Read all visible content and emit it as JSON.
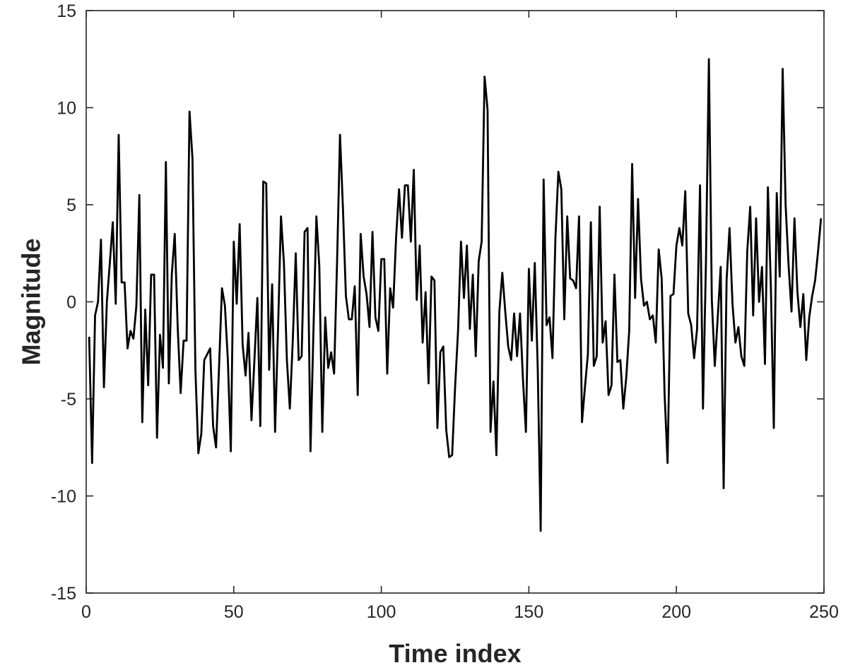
{
  "chart_data": {
    "type": "line",
    "title": "",
    "xlabel": "Time index",
    "ylabel": "Magnitude",
    "xlim": [
      0,
      250
    ],
    "ylim": [
      -15,
      15
    ],
    "xticks": [
      0,
      50,
      100,
      150,
      200,
      250
    ],
    "yticks": [
      -15,
      -10,
      -5,
      0,
      5,
      10,
      15
    ],
    "xtick_labels": [
      "0",
      "50",
      "100",
      "150",
      "200",
      "250"
    ],
    "ytick_labels": [
      "-15",
      "-10",
      "-5",
      "0",
      "5",
      "10",
      "15"
    ],
    "grid": false,
    "box": true,
    "series": [
      {
        "color": "#000000",
        "x": [
          1,
          2,
          3,
          4,
          5,
          6,
          7,
          8,
          9,
          10,
          11,
          12,
          13,
          14,
          15,
          16,
          17,
          18,
          19,
          20,
          21,
          22,
          23,
          24,
          25,
          26,
          27,
          28,
          29,
          30,
          31,
          32,
          33,
          34,
          35,
          36,
          37,
          38,
          39,
          40,
          41,
          42,
          43,
          44,
          45,
          46,
          47,
          48,
          49,
          50,
          51,
          52,
          53,
          54,
          55,
          56,
          57,
          58,
          59,
          60,
          61,
          62,
          63,
          64,
          65,
          66,
          67,
          68,
          69,
          70,
          71,
          72,
          73,
          74,
          75,
          76,
          77,
          78,
          79,
          80,
          81,
          82,
          83,
          84,
          85,
          86,
          87,
          88,
          89,
          90,
          91,
          92,
          93,
          94,
          95,
          96,
          97,
          98,
          99,
          100,
          101,
          102,
          103,
          104,
          105,
          106,
          107,
          108,
          109,
          110,
          111,
          112,
          113,
          114,
          115,
          116,
          117,
          118,
          119,
          120,
          121,
          122,
          123,
          124,
          125,
          126,
          127,
          128,
          129,
          130,
          131,
          132,
          133,
          134,
          135,
          136,
          137,
          138,
          139,
          140,
          141,
          142,
          143,
          144,
          145,
          146,
          147,
          148,
          149,
          150,
          151,
          152,
          153,
          154,
          155,
          156,
          157,
          158,
          159,
          160,
          161,
          162,
          163,
          164,
          165,
          166,
          167,
          168,
          169,
          170,
          171,
          172,
          173,
          174,
          175,
          176,
          177,
          178,
          179,
          180,
          181,
          182,
          183,
          184,
          185,
          186,
          187,
          188,
          189,
          190,
          191,
          192,
          193,
          194,
          195,
          196,
          197,
          198,
          199,
          200,
          201,
          202,
          203,
          204,
          205,
          206,
          207,
          208,
          209,
          210,
          211,
          212,
          213,
          214,
          215,
          216,
          217,
          218,
          219,
          220,
          221,
          222,
          223,
          224,
          225,
          226,
          227,
          228,
          229,
          230,
          231,
          232,
          233,
          234,
          235,
          236,
          237,
          238,
          239,
          240,
          241,
          242,
          243,
          244,
          245,
          246,
          247,
          248,
          249
        ],
        "y": [
          -1.8,
          -8.3,
          -0.7,
          0.0,
          3.2,
          -4.4,
          0.0,
          2.0,
          4.1,
          -0.1,
          8.6,
          1.0,
          1.0,
          -2.4,
          -1.5,
          -1.9,
          -0.2,
          5.5,
          -6.2,
          -0.4,
          -4.3,
          1.4,
          1.4,
          -7.0,
          -1.7,
          -3.4,
          7.2,
          -4.2,
          1.4,
          3.5,
          -1.3,
          -4.7,
          -2.0,
          -2.0,
          9.8,
          7.4,
          -3.5,
          -7.8,
          -6.8,
          -3.0,
          -2.7,
          -2.4,
          -6.4,
          -7.5,
          -3.4,
          0.7,
          -0.2,
          -3.0,
          -7.7,
          3.1,
          -0.1,
          4.0,
          -2.2,
          -3.8,
          -1.6,
          -6.1,
          -3.0,
          0.2,
          -6.4,
          6.2,
          6.1,
          -3.5,
          0.9,
          -6.7,
          -1.4,
          4.4,
          2.0,
          -3.0,
          -5.5,
          -2.0,
          2.5,
          -3.0,
          -2.8,
          3.6,
          3.8,
          -7.7,
          -1.5,
          4.4,
          1.8,
          -6.7,
          -0.8,
          -3.4,
          -2.6,
          -3.7,
          2.0,
          8.6,
          4.8,
          0.3,
          -0.9,
          -0.9,
          0.8,
          -4.8,
          3.5,
          1.3,
          0.4,
          -1.3,
          3.6,
          -0.8,
          -1.5,
          2.2,
          2.2,
          -3.7,
          0.7,
          -0.3,
          3.3,
          5.8,
          3.3,
          6.0,
          6.0,
          3.1,
          6.8,
          0.1,
          2.9,
          -2.1,
          0.5,
          -4.2,
          1.3,
          1.1,
          -6.5,
          -2.6,
          -2.3,
          -6.6,
          -8.0,
          -7.9,
          -4.4,
          -1.5,
          3.1,
          0.2,
          2.9,
          -1.4,
          1.4,
          -2.8,
          2.1,
          3.1,
          11.6,
          9.9,
          -6.7,
          -4.1,
          -7.9,
          -0.5,
          1.5,
          -0.5,
          -2.3,
          -3.0,
          -0.6,
          -2.8,
          -0.6,
          -4.0,
          -6.7,
          1.7,
          -2.0,
          2.0,
          -3.4,
          -11.8,
          6.3,
          -1.2,
          -0.8,
          -2.9,
          3.3,
          6.7,
          5.8,
          -0.9,
          4.4,
          1.2,
          1.1,
          0.7,
          4.4,
          -6.2,
          -4.4,
          -2.7,
          4.1,
          -3.3,
          -2.8,
          4.9,
          -2.1,
          -1.0,
          -4.8,
          -4.3,
          1.4,
          -3.1,
          -3.0,
          -5.5,
          -3.9,
          -1.5,
          7.1,
          0.2,
          5.3,
          1.2,
          -0.2,
          0.0,
          -0.9,
          -0.7,
          -2.1,
          2.7,
          1.2,
          -4.8,
          -8.3,
          0.3,
          0.4,
          2.9,
          3.8,
          2.9,
          5.7,
          -0.6,
          -1.2,
          -2.9,
          -1.4,
          6.0,
          -5.5,
          2.0,
          12.5,
          0.1,
          -3.3,
          -0.8,
          1.8,
          -9.6,
          1.1,
          3.8,
          -0.1,
          -2.1,
          -1.3,
          -2.8,
          -3.3,
          2.6,
          4.9,
          -0.7,
          4.3,
          0.0,
          1.8,
          -3.2,
          5.9,
          0.8,
          -6.5,
          5.6,
          1.3,
          12.0,
          5.0,
          1.9,
          -0.5,
          4.3,
          0.5,
          -1.3,
          0.4,
          -3.0,
          -0.8,
          0.3,
          1.1,
          2.6,
          4.3
        ]
      }
    ]
  }
}
